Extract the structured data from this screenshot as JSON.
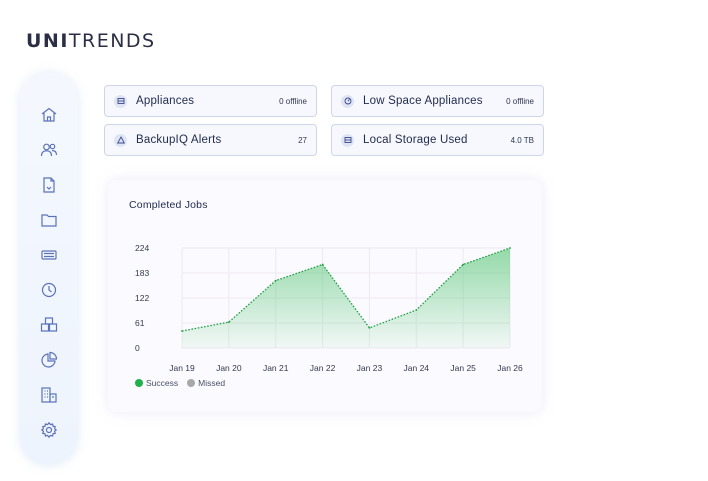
{
  "brand": {
    "logo_bold": "UNI",
    "logo_rest": "TRENDS"
  },
  "sidebar": {
    "items": [
      {
        "icon": "home-icon"
      },
      {
        "icon": "users-icon"
      },
      {
        "icon": "document-icon"
      },
      {
        "icon": "folder-icon"
      },
      {
        "icon": "appliance-icon"
      },
      {
        "icon": "clock-icon"
      },
      {
        "icon": "boxes-icon"
      },
      {
        "icon": "pie-chart-icon"
      },
      {
        "icon": "building-icon"
      },
      {
        "icon": "gear-icon"
      }
    ]
  },
  "cards": [
    {
      "label": "Appliances",
      "value": "0 offline",
      "icon": "appliance-icon"
    },
    {
      "label": "Low Space Appliances",
      "value": "0 offline",
      "icon": "gauge-icon"
    },
    {
      "label": "BackupIQ Alerts",
      "value": "27",
      "icon": "warning-icon"
    },
    {
      "label": "Local Storage Used",
      "value": "4.0 TB",
      "icon": "storage-icon"
    }
  ],
  "colors": {
    "accent": "#2f3b7a",
    "success": "#22b04b",
    "missed": "#a8a8a8"
  },
  "chart_data": {
    "type": "area",
    "title": "Completed Jobs",
    "categories": [
      "Jan 19",
      "Jan 20",
      "Jan 21",
      "Jan 22",
      "Jan 23",
      "Jan 24",
      "Jan 25",
      "Jan 26"
    ],
    "y_ticks": [
      "224",
      "183",
      "122",
      "61",
      "0"
    ],
    "ylim": [
      0,
      224
    ],
    "series": [
      {
        "name": "Success",
        "values": [
          38,
          58,
          151,
          187,
          45,
          85,
          187,
          224
        ]
      },
      {
        "name": "Missed",
        "values": [
          0,
          0,
          0,
          0,
          0,
          0,
          0,
          0
        ]
      }
    ],
    "legend": "bottom-left"
  }
}
